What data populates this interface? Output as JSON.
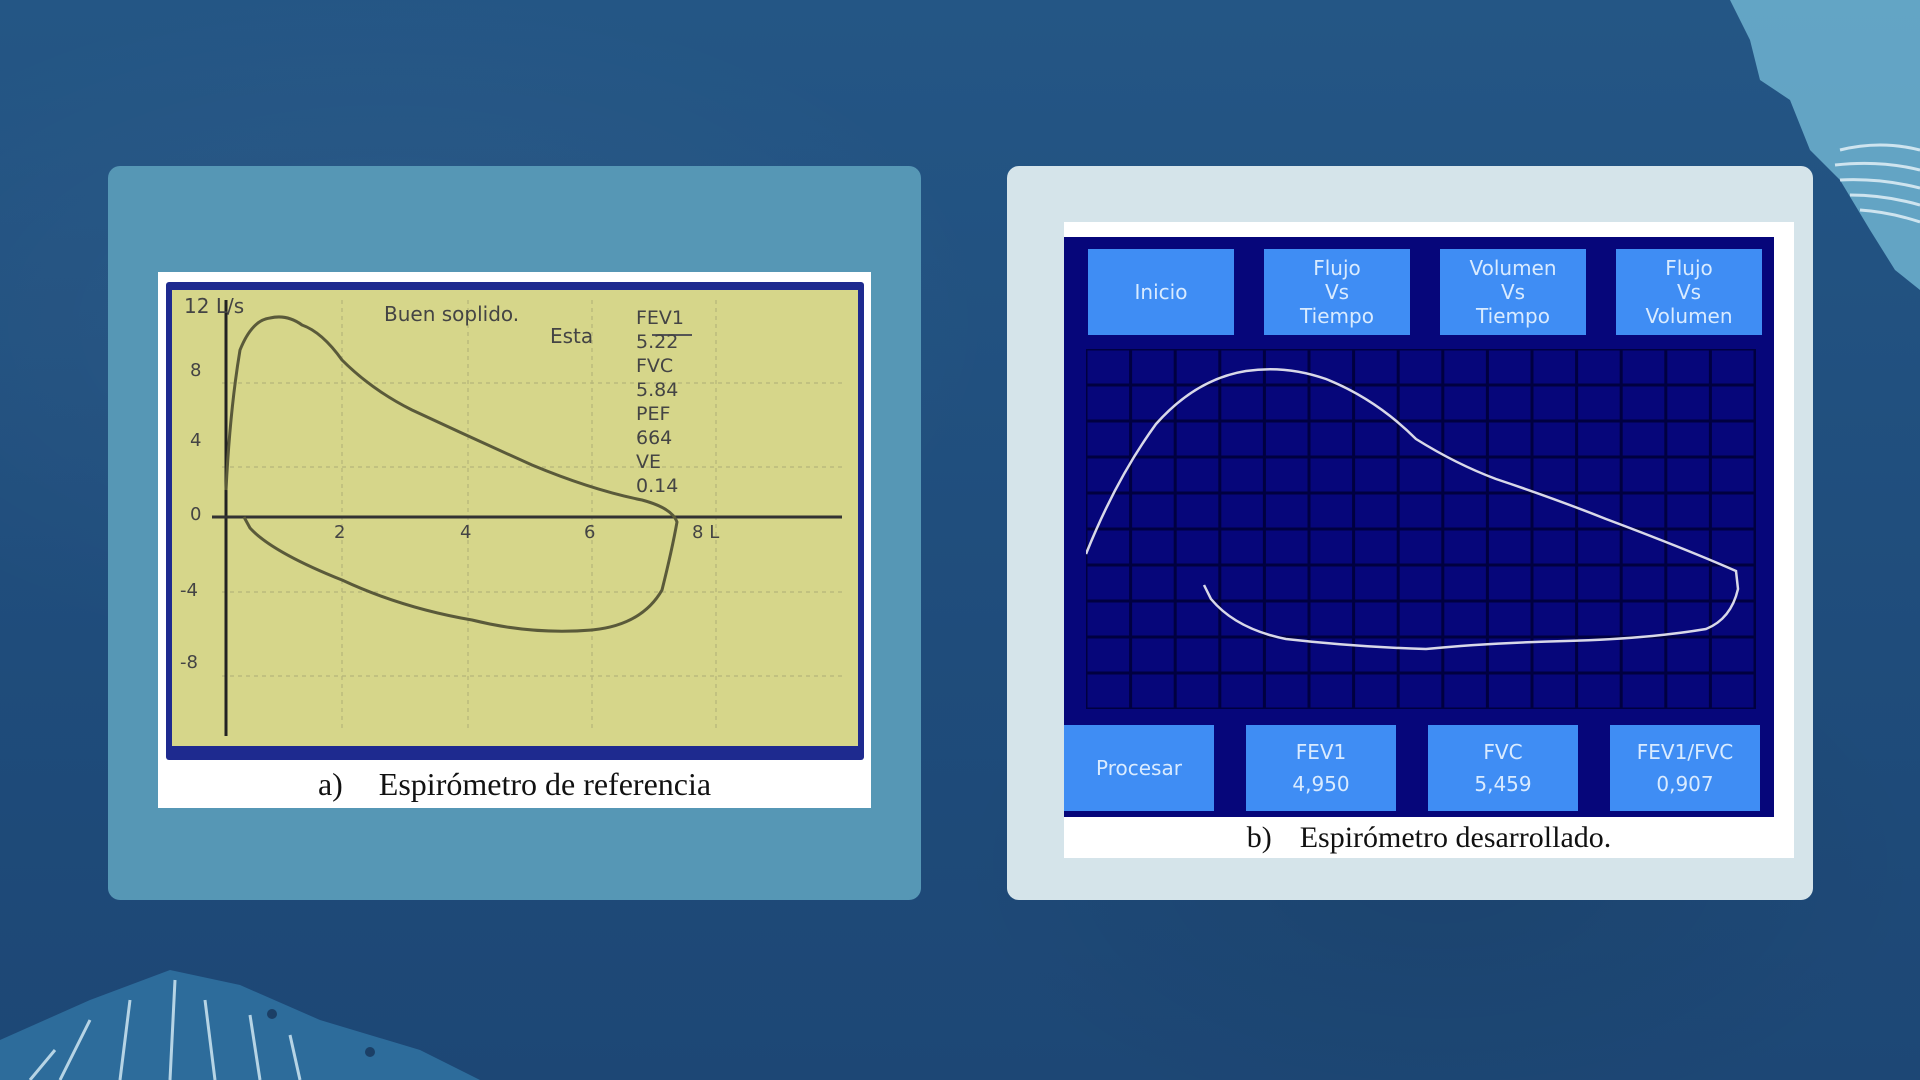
{
  "figure_a": {
    "caption_tag": "a)",
    "caption_text": "Espirómetro de referencia",
    "display": {
      "y_unit": "L/s",
      "x_unit": "L",
      "status": "Buen soplido.",
      "legend": "Esta",
      "y_ticks": [
        "12",
        "8",
        "4",
        "0",
        "-4",
        "-8"
      ],
      "x_ticks": [
        "2",
        "4",
        "6",
        "8"
      ],
      "metrics": [
        {
          "label": "FEV1",
          "value": "5.22"
        },
        {
          "label": "FVC",
          "value": "5.84"
        },
        {
          "label": "PEF",
          "value": "664"
        },
        {
          "label": "VE",
          "value": "0.14"
        }
      ]
    }
  },
  "figure_b": {
    "caption_tag": "b)",
    "caption_text": "Espirómetro desarrollado.",
    "top_buttons": [
      {
        "lines": [
          "Inicio"
        ]
      },
      {
        "lines": [
          "Flujo",
          "Vs",
          "Tiempo"
        ]
      },
      {
        "lines": [
          "Volumen",
          "Vs",
          "Tiempo"
        ]
      },
      {
        "lines": [
          "Flujo",
          "Vs",
          "Volumen"
        ]
      }
    ],
    "bottom_buttons": [
      {
        "label": "Procesar",
        "value": ""
      },
      {
        "label": "FEV1",
        "value": "4,950"
      },
      {
        "label": "FVC",
        "value": "5,459"
      },
      {
        "label": "FEV1/FVC",
        "value": "0,907"
      }
    ]
  },
  "colors": {
    "background": "#21507f",
    "card_left": "#5697b5",
    "card_right": "#d5e4ea",
    "lcd_yellow": "#d6d68a",
    "app_blue": "#06067a",
    "button_blue": "#3f8df4"
  }
}
